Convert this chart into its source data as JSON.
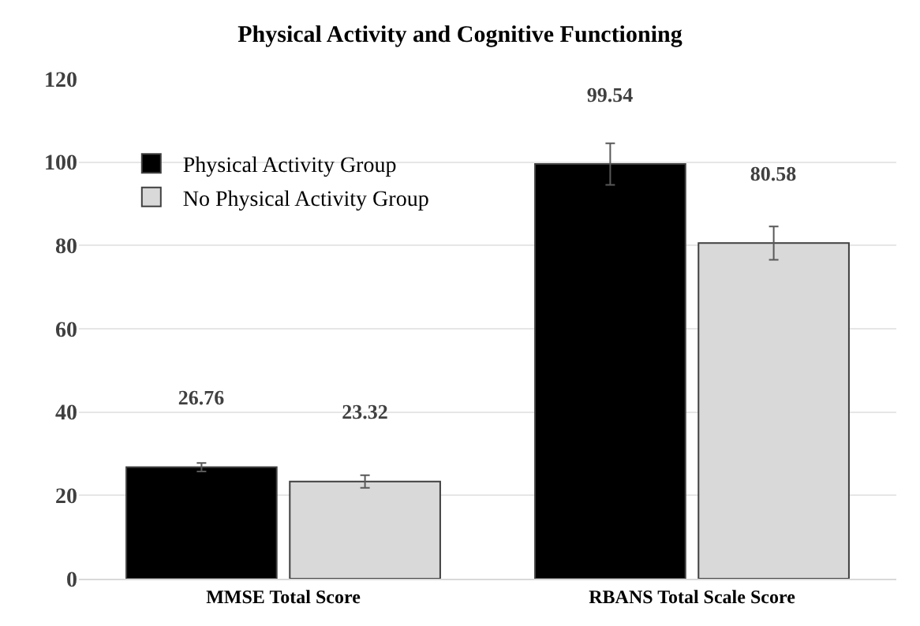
{
  "chart_data": {
    "type": "bar",
    "title": "Physical Activity and Cognitive Functioning",
    "categories": [
      "MMSE Total Score",
      "RBANS Total Scale Score"
    ],
    "series": [
      {
        "name": "Physical Activity Group",
        "color": "#000000",
        "values": [
          26.76,
          99.54
        ],
        "errors": [
          1,
          5
        ]
      },
      {
        "name": "No Physical Activity Group",
        "color": "#d9d9d9",
        "values": [
          23.32,
          80.58
        ],
        "errors": [
          1.5,
          4
        ]
      }
    ],
    "ylim": [
      0,
      120
    ],
    "yticks": [
      0,
      20,
      40,
      60,
      80,
      100,
      120
    ],
    "grid": "y",
    "legend": "top left",
    "data_labels": true
  }
}
